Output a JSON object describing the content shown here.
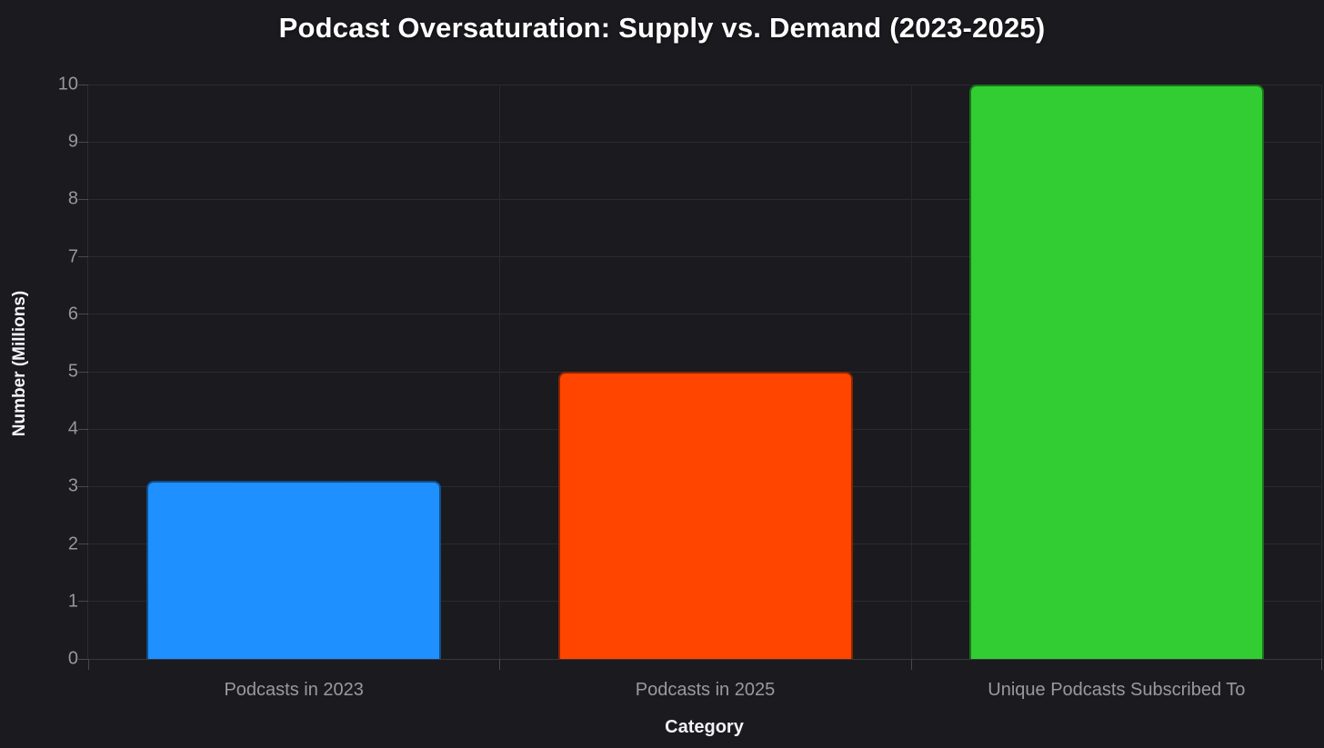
{
  "chart_data": {
    "type": "bar",
    "title": "Podcast Oversaturation: Supply vs. Demand (2023-2025)",
    "categories": [
      "Podcasts in 2023",
      "Podcasts in 2025",
      "Unique Podcasts Subscribed To"
    ],
    "values": [
      3.1,
      5,
      10
    ],
    "bar_colors": [
      "#1e90ff",
      "#ff4500",
      "#32cd32"
    ],
    "xlabel": "Category",
    "ylabel": "Number (Millions)",
    "ylim": [
      0,
      10
    ],
    "ytick_step": 1,
    "yticks": [
      "0",
      "1",
      "2",
      "3",
      "4",
      "5",
      "6",
      "7",
      "8",
      "9",
      "10"
    ],
    "grid": true,
    "legend": false,
    "colors": {
      "background": "#1a1a1f",
      "gridline": "#2a2a2f",
      "tick_text": "#97979c",
      "category_text": "#9a9a9e",
      "title_text": "#ffffff",
      "axis_title_text": "#f2f2f4",
      "bar_border": "rgba(0,0,0,0.45)"
    }
  }
}
